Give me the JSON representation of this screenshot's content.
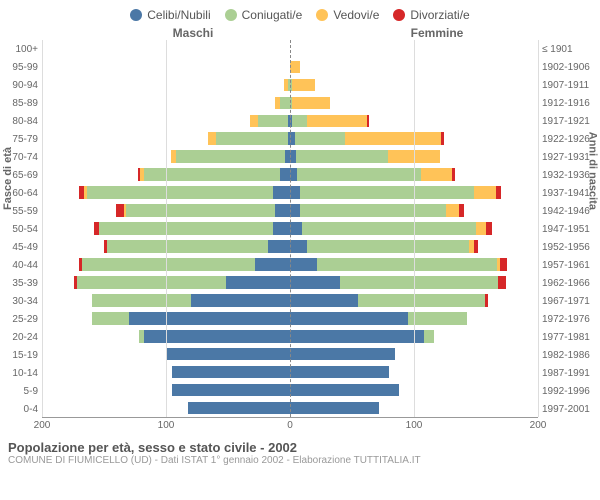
{
  "legend": [
    {
      "label": "Celibi/Nubili",
      "color": "#4b78a6"
    },
    {
      "label": "Coniugati/e",
      "color": "#abcf94"
    },
    {
      "label": "Vedovi/e",
      "color": "#ffc358"
    },
    {
      "label": "Divorziati/e",
      "color": "#d62728"
    }
  ],
  "header_left": "Maschi",
  "header_right": "Femmine",
  "axis_left_title": "Fasce di età",
  "axis_right_title": "Anni di nascita",
  "title": "Popolazione per età, sesso e stato civile - 2002",
  "subtitle": "COMUNE DI FIUMICELLO (UD) - Dati ISTAT 1° gennaio 2002 - Elaborazione TUTTITALIA.IT",
  "xmax": 200,
  "x_ticks_left": [
    200,
    100,
    0
  ],
  "x_ticks_right": [
    100,
    200
  ],
  "background_color": "#ffffff",
  "grid_color": "#dddddd",
  "rows": [
    {
      "age": "100+",
      "birth": "≤ 1901",
      "m": [
        0,
        0,
        0,
        0
      ],
      "f": [
        0,
        0,
        0,
        0
      ]
    },
    {
      "age": "95-99",
      "birth": "1902-1906",
      "m": [
        0,
        0,
        0,
        0
      ],
      "f": [
        0,
        0,
        8,
        0
      ]
    },
    {
      "age": "90-94",
      "birth": "1907-1911",
      "m": [
        0,
        2,
        3,
        0
      ],
      "f": [
        0,
        2,
        18,
        0
      ]
    },
    {
      "age": "85-89",
      "birth": "1912-1916",
      "m": [
        0,
        8,
        4,
        0
      ],
      "f": [
        0,
        2,
        30,
        0
      ]
    },
    {
      "age": "80-84",
      "birth": "1917-1921",
      "m": [
        2,
        24,
        6,
        0
      ],
      "f": [
        2,
        12,
        48,
        2
      ]
    },
    {
      "age": "75-79",
      "birth": "1922-1926",
      "m": [
        2,
        58,
        6,
        0
      ],
      "f": [
        4,
        40,
        78,
        2
      ]
    },
    {
      "age": "70-74",
      "birth": "1927-1931",
      "m": [
        4,
        88,
        4,
        0
      ],
      "f": [
        5,
        74,
        42,
        0
      ]
    },
    {
      "age": "65-69",
      "birth": "1932-1936",
      "m": [
        8,
        110,
        3,
        2
      ],
      "f": [
        6,
        100,
        25,
        2
      ]
    },
    {
      "age": "60-64",
      "birth": "1937-1941",
      "m": [
        14,
        150,
        2,
        4
      ],
      "f": [
        8,
        140,
        18,
        4
      ]
    },
    {
      "age": "55-59",
      "birth": "1942-1946",
      "m": [
        12,
        120,
        2,
        6
      ],
      "f": [
        8,
        118,
        10,
        4
      ]
    },
    {
      "age": "50-54",
      "birth": "1947-1951",
      "m": [
        14,
        140,
        0,
        4
      ],
      "f": [
        10,
        140,
        8,
        5
      ]
    },
    {
      "age": "45-49",
      "birth": "1952-1956",
      "m": [
        18,
        130,
        0,
        2
      ],
      "f": [
        14,
        130,
        4,
        4
      ]
    },
    {
      "age": "40-44",
      "birth": "1957-1961",
      "m": [
        28,
        140,
        0,
        2
      ],
      "f": [
        22,
        145,
        2,
        6
      ]
    },
    {
      "age": "35-39",
      "birth": "1962-1966",
      "m": [
        52,
        120,
        0,
        2
      ],
      "f": [
        40,
        128,
        0,
        6
      ]
    },
    {
      "age": "30-34",
      "birth": "1967-1971",
      "m": [
        80,
        80,
        0,
        0
      ],
      "f": [
        55,
        102,
        0,
        3
      ]
    },
    {
      "age": "25-29",
      "birth": "1972-1976",
      "m": [
        130,
        30,
        0,
        0
      ],
      "f": [
        95,
        48,
        0,
        0
      ]
    },
    {
      "age": "20-24",
      "birth": "1977-1981",
      "m": [
        118,
        4,
        0,
        0
      ],
      "f": [
        108,
        8,
        0,
        0
      ]
    },
    {
      "age": "15-19",
      "birth": "1982-1986",
      "m": [
        100,
        0,
        0,
        0
      ],
      "f": [
        85,
        0,
        0,
        0
      ]
    },
    {
      "age": "10-14",
      "birth": "1987-1991",
      "m": [
        95,
        0,
        0,
        0
      ],
      "f": [
        80,
        0,
        0,
        0
      ]
    },
    {
      "age": "5-9",
      "birth": "1992-1996",
      "m": [
        95,
        0,
        0,
        0
      ],
      "f": [
        88,
        0,
        0,
        0
      ]
    },
    {
      "age": "0-4",
      "birth": "1997-2001",
      "m": [
        82,
        0,
        0,
        0
      ],
      "f": [
        72,
        0,
        0,
        0
      ]
    }
  ]
}
